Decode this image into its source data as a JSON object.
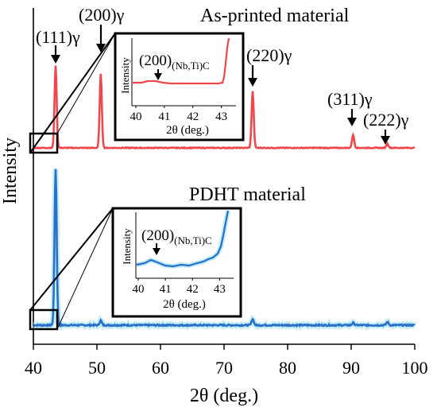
{
  "chart_data": {
    "type": "line",
    "xlabel": "2θ (deg.)",
    "ylabel": "Intensity",
    "xlim": [
      40,
      100
    ],
    "x_ticks": [
      40,
      50,
      60,
      70,
      80,
      90,
      100
    ],
    "grid": false,
    "colors": {
      "as_printed": "#f0474c",
      "pdht": "#2a6fc9",
      "pdht_glow": "#9ee3f0"
    },
    "panels": [
      {
        "key": "as_printed",
        "label": "As-printed material",
        "baseline": 0,
        "peaks": [
          {
            "x": 43.5,
            "height": 100
          },
          {
            "x": 50.6,
            "height": 90
          },
          {
            "x": 74.5,
            "height": 69
          },
          {
            "x": 90.3,
            "height": 16
          },
          {
            "x": 95.7,
            "height": 5
          }
        ],
        "annotations": [
          {
            "x": 43.5,
            "label": "(111)γ"
          },
          {
            "x": 50.6,
            "label": "(200)γ"
          },
          {
            "x": 74.5,
            "label": "(220)γ"
          },
          {
            "x": 90.3,
            "label": "(311)γ"
          },
          {
            "x": 95.7,
            "label": "(222)γ"
          }
        ],
        "inset": {
          "xlabel": "2θ (deg.)",
          "ylabel": "Intensity",
          "x_ticks": [
            40,
            41,
            42,
            43
          ],
          "annotation": {
            "x": 40.6,
            "label": "(200)",
            "subscript": "(Nb,Ti)C"
          }
        }
      },
      {
        "key": "pdht",
        "label": "PDHT material",
        "baseline": 0,
        "peaks": [
          {
            "x": 43.5,
            "height": 100
          },
          {
            "x": 50.6,
            "height": 3
          },
          {
            "x": 74.5,
            "height": 4
          },
          {
            "x": 90.3,
            "height": 1.5
          },
          {
            "x": 95.7,
            "height": 2
          }
        ],
        "inset": {
          "xlabel": "2θ (deg.)",
          "ylabel": "Intensity",
          "x_ticks": [
            40,
            41,
            42,
            43
          ],
          "annotation": {
            "x": 40.6,
            "label": "(200)",
            "subscript": "(Nb,Ti)C"
          }
        }
      }
    ]
  }
}
